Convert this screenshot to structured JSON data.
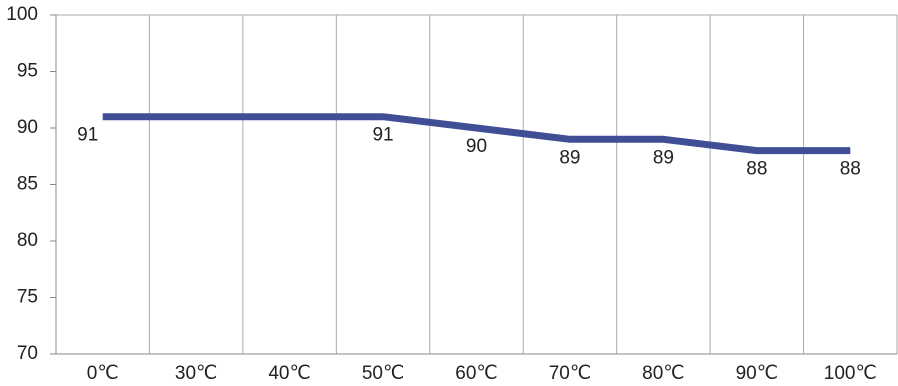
{
  "chart_data": {
    "type": "line",
    "categories": [
      "0℃",
      "30℃",
      "40℃",
      "50℃",
      "60℃",
      "70℃",
      "80℃",
      "90℃",
      "100℃"
    ],
    "series": [
      {
        "color": "#3f4e95",
        "values": [
          91,
          91,
          91,
          91,
          90,
          89,
          89,
          88,
          88
        ],
        "value_labels": [
          "91",
          null,
          null,
          "91",
          "90",
          "89",
          "89",
          "88",
          "88"
        ]
      }
    ],
    "ylim": [
      70,
      100
    ],
    "yticks": [
      70,
      75,
      80,
      85,
      90,
      95,
      100
    ],
    "grid": true
  }
}
